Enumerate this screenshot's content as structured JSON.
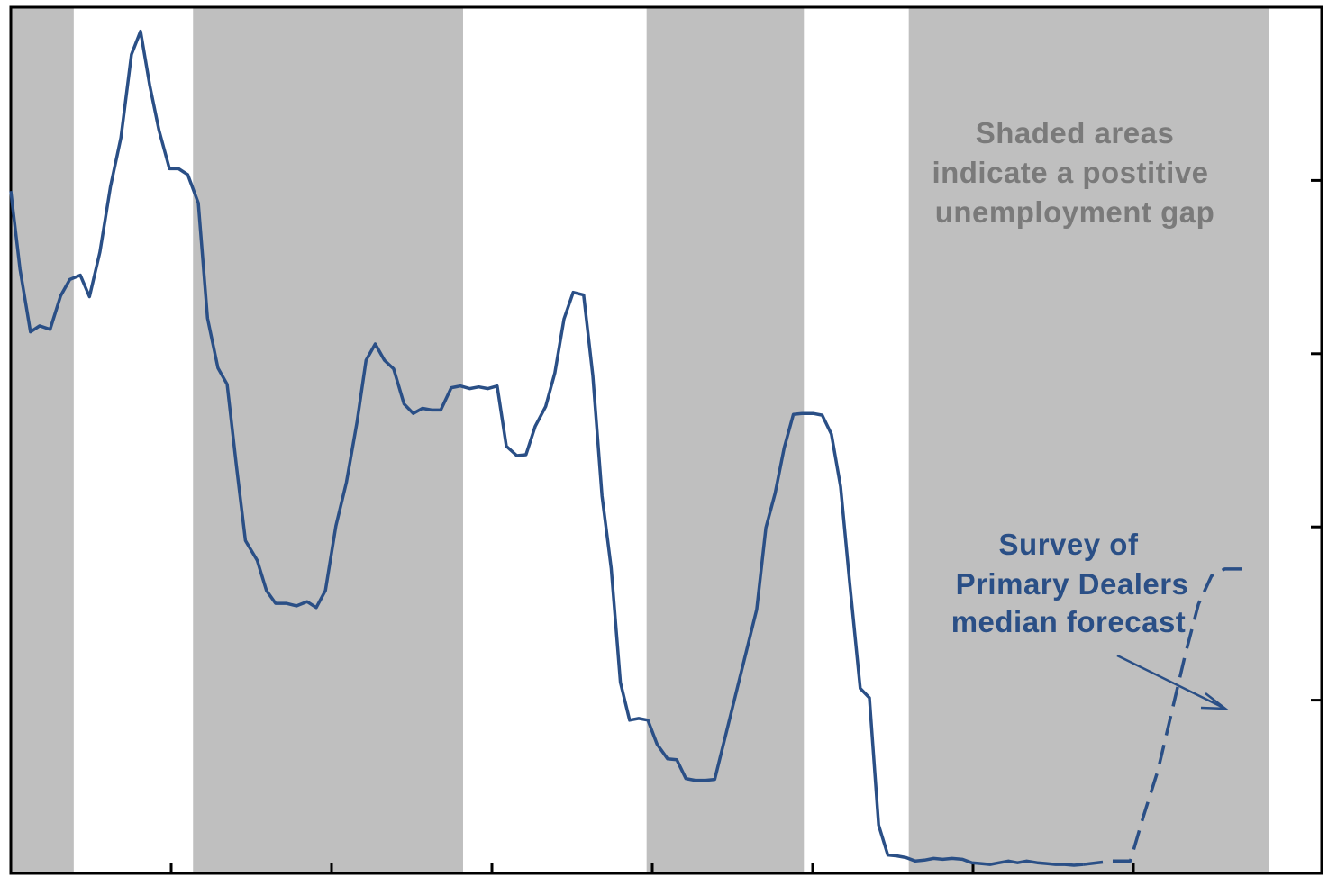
{
  "chart_data": {
    "type": "line",
    "title": "",
    "xlabel": "",
    "ylabel": "",
    "x_range": [
      0,
      1000
    ],
    "ylim": [
      0,
      100
    ],
    "y_gridlines_count": 5,
    "x_ticks_count": 7,
    "shaded_regions": {
      "meaning": "Shaded areas indicate a postitive unemployment gap",
      "ranges": [
        [
          0,
          48
        ],
        [
          139,
          345
        ],
        [
          485,
          605
        ],
        [
          685,
          960
        ]
      ]
    },
    "series": [
      {
        "name": "",
        "style": "solid",
        "values": [
          [
            0,
            78.6
          ],
          [
            7,
            69.5
          ],
          [
            15,
            62.2
          ],
          [
            22,
            62.9
          ],
          [
            30,
            62.5
          ],
          [
            38,
            66.4
          ],
          [
            45,
            68.3
          ],
          [
            53,
            68.8
          ],
          [
            60,
            66.3
          ],
          [
            68,
            71.5
          ],
          [
            76,
            79.1
          ],
          [
            84,
            84.8
          ],
          [
            92,
            94.5
          ],
          [
            99,
            97.2
          ],
          [
            106,
            90.9
          ],
          [
            113,
            85.7
          ],
          [
            121,
            81.2
          ],
          [
            128,
            81.2
          ],
          [
            135,
            80.5
          ],
          [
            143,
            77.2
          ],
          [
            150,
            63.8
          ],
          [
            158,
            58.0
          ],
          [
            165,
            56.1
          ],
          [
            172,
            46.7
          ],
          [
            179,
            37.9
          ],
          [
            188,
            35.6
          ],
          [
            195,
            32.1
          ],
          [
            202,
            30.6
          ],
          [
            210,
            30.6
          ],
          [
            218,
            30.3
          ],
          [
            226,
            30.8
          ],
          [
            233,
            30.1
          ],
          [
            240,
            32.1
          ],
          [
            248,
            39.6
          ],
          [
            256,
            44.7
          ],
          [
            264,
            51.6
          ],
          [
            271,
            58.9
          ],
          [
            278,
            60.8
          ],
          [
            285,
            58.9
          ],
          [
            292,
            57.9
          ],
          [
            300,
            53.8
          ],
          [
            307,
            52.7
          ],
          [
            314,
            53.3
          ],
          [
            321,
            53.1
          ],
          [
            328,
            53.1
          ],
          [
            336,
            55.7
          ],
          [
            343,
            55.9
          ],
          [
            350,
            55.6
          ],
          [
            357,
            55.8
          ],
          [
            364,
            55.6
          ],
          [
            371,
            55.9
          ],
          [
            378,
            48.9
          ],
          [
            386,
            47.8
          ],
          [
            393,
            47.9
          ],
          [
            400,
            51.2
          ],
          [
            408,
            53.5
          ],
          [
            415,
            57.4
          ],
          [
            422,
            63.7
          ],
          [
            429,
            66.8
          ],
          [
            437,
            66.5
          ],
          [
            444,
            57.1
          ],
          [
            451,
            43.1
          ],
          [
            458,
            34.7
          ],
          [
            465,
            21.4
          ],
          [
            472,
            17.0
          ],
          [
            479,
            17.2
          ],
          [
            486,
            17.0
          ],
          [
            493,
            14.2
          ],
          [
            501,
            12.5
          ],
          [
            508,
            12.4
          ],
          [
            515,
            10.2
          ],
          [
            522,
            10.0
          ],
          [
            530,
            10.0
          ],
          [
            537,
            10.1
          ],
          [
            569,
            29.9
          ],
          [
            576,
            39.4
          ],
          [
            583,
            43.4
          ],
          [
            590,
            48.7
          ],
          [
            597,
            52.6
          ],
          [
            604,
            52.7
          ],
          [
            612,
            52.7
          ],
          [
            619,
            52.5
          ],
          [
            626,
            50.3
          ],
          [
            633,
            44.2
          ],
          [
            640,
            32.9
          ],
          [
            648,
            20.7
          ],
          [
            655,
            19.6
          ],
          [
            662,
            4.8
          ],
          [
            669,
            1.3
          ],
          [
            676,
            1.2
          ],
          [
            683,
            1.0
          ],
          [
            690,
            0.6
          ],
          [
            697,
            0.7
          ],
          [
            704,
            0.9
          ],
          [
            711,
            0.8
          ],
          [
            718,
            0.9
          ],
          [
            726,
            0.8
          ],
          [
            733,
            0.4
          ],
          [
            740,
            0.3
          ],
          [
            747,
            0.2
          ],
          [
            754,
            0.4
          ],
          [
            761,
            0.6
          ],
          [
            768,
            0.4
          ],
          [
            775,
            0.6
          ],
          [
            783,
            0.4
          ],
          [
            790,
            0.3
          ],
          [
            797,
            0.2
          ],
          [
            804,
            0.2
          ],
          [
            811,
            0.1
          ],
          [
            818,
            0.2
          ]
        ]
      },
      {
        "name": "Survey of Primary Dealers median forecast",
        "style": "dashed",
        "values": [
          [
            818,
            0.2
          ],
          [
            840,
            0.6
          ],
          [
            854,
            0.6
          ],
          [
            864,
            5.8
          ],
          [
            875,
            11.1
          ],
          [
            886,
            18.2
          ],
          [
            896,
            24.7
          ],
          [
            906,
            30.5
          ],
          [
            916,
            33.8
          ],
          [
            926,
            34.6
          ],
          [
            942,
            34.6
          ]
        ]
      }
    ],
    "annotations": {
      "shade_note": [
        "Shaded areas",
        "indicate a postitive",
        "unemployment gap"
      ],
      "forecast_label": [
        "Survey of",
        "Primary Dealers",
        "median forecast"
      ]
    },
    "colors": {
      "line": "#2a4f86",
      "shade": "#bfbfbf",
      "shade_text": "#7a7a7a",
      "forecast_text": "#2a4f86",
      "frame": "#000000"
    },
    "grid": false,
    "legend": "none"
  }
}
